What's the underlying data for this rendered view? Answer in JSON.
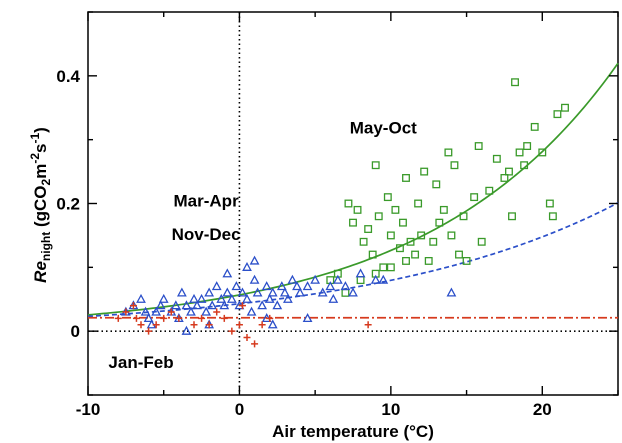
{
  "chart_data": {
    "type": "scatter",
    "xlabel": "Air temperature (°C)",
    "ylabel": {
      "main": "Re",
      "sub1": "night",
      "rest1": " (gCO",
      "sub2": "2",
      "rest2": "m",
      "sup1": "-2",
      "rest3": "s",
      "sup2": "-1",
      "rest4": ")"
    },
    "xlim": [
      -10,
      25
    ],
    "ylim": [
      -0.1,
      0.5
    ],
    "xticks": [
      -10,
      0,
      10,
      20
    ],
    "yticks": [
      0,
      0.2,
      0.4
    ],
    "xtick_labels": [
      "-10",
      "0",
      "10",
      "20"
    ],
    "ytick_labels": [
      "0",
      "0.2",
      "0.4"
    ],
    "annotations": [
      {
        "text": "May-Oct",
        "x": 9.5,
        "y": 0.31
      },
      {
        "text": "Mar-Apr",
        "x": -2.2,
        "y": 0.195
      },
      {
        "text": "Nov-Dec",
        "x": -2.2,
        "y": 0.143
      },
      {
        "text": "Jan-Feb",
        "x": -6.5,
        "y": -0.058
      }
    ],
    "series": [
      {
        "marker": "square",
        "color": "#3a9a2a",
        "points": [
          [
            7.2,
            0.2
          ],
          [
            7.5,
            0.17
          ],
          [
            7.8,
            0.19
          ],
          [
            8.2,
            0.14
          ],
          [
            8.5,
            0.16
          ],
          [
            8.8,
            0.12
          ],
          [
            9.0,
            0.26
          ],
          [
            9.2,
            0.18
          ],
          [
            9.5,
            0.1
          ],
          [
            9.8,
            0.21
          ],
          [
            10.0,
            0.15
          ],
          [
            10.3,
            0.19
          ],
          [
            10.6,
            0.13
          ],
          [
            10.8,
            0.17
          ],
          [
            11.0,
            0.24
          ],
          [
            11.3,
            0.14
          ],
          [
            11.6,
            0.12
          ],
          [
            11.8,
            0.2
          ],
          [
            12.0,
            0.15
          ],
          [
            12.2,
            0.25
          ],
          [
            12.5,
            0.11
          ],
          [
            12.8,
            0.14
          ],
          [
            13.0,
            0.23
          ],
          [
            13.2,
            0.17
          ],
          [
            13.5,
            0.19
          ],
          [
            13.8,
            0.28
          ],
          [
            14.0,
            0.15
          ],
          [
            14.2,
            0.26
          ],
          [
            14.5,
            0.12
          ],
          [
            14.8,
            0.18
          ],
          [
            15.0,
            0.11
          ],
          [
            15.5,
            0.21
          ],
          [
            15.8,
            0.29
          ],
          [
            16.0,
            0.14
          ],
          [
            16.5,
            0.22
          ],
          [
            17.0,
            0.27
          ],
          [
            17.5,
            0.24
          ],
          [
            17.8,
            0.25
          ],
          [
            18.0,
            0.18
          ],
          [
            18.2,
            0.39
          ],
          [
            18.5,
            0.28
          ],
          [
            18.8,
            0.26
          ],
          [
            19.0,
            0.29
          ],
          [
            19.5,
            0.32
          ],
          [
            20.0,
            0.28
          ],
          [
            20.5,
            0.2
          ],
          [
            20.7,
            0.18
          ],
          [
            21.0,
            0.34
          ],
          [
            21.5,
            0.35
          ],
          [
            6.0,
            0.08
          ],
          [
            6.5,
            0.09
          ],
          [
            7.0,
            0.06
          ],
          [
            8.0,
            0.08
          ],
          [
            9.0,
            0.09
          ],
          [
            10.0,
            0.1
          ],
          [
            11.0,
            0.11
          ]
        ]
      },
      {
        "marker": "triangle",
        "color": "#2b4fc9",
        "points": [
          [
            -7.5,
            0.03
          ],
          [
            -7.0,
            0.04
          ],
          [
            -6.5,
            0.05
          ],
          [
            -6.2,
            0.03
          ],
          [
            -6.0,
            0.02
          ],
          [
            -5.8,
            0.01
          ],
          [
            -5.5,
            0.03
          ],
          [
            -5.2,
            0.04
          ],
          [
            -5.0,
            0.05
          ],
          [
            -4.5,
            0.03
          ],
          [
            -4.2,
            0.04
          ],
          [
            -4.0,
            0.02
          ],
          [
            -3.8,
            0.06
          ],
          [
            -3.5,
            0.04
          ],
          [
            -3.2,
            0.03
          ],
          [
            -3.0,
            0.05
          ],
          [
            -2.8,
            0.04
          ],
          [
            -2.5,
            0.05
          ],
          [
            -2.2,
            0.03
          ],
          [
            -2.0,
            0.06
          ],
          [
            -1.8,
            0.04
          ],
          [
            -1.5,
            0.07
          ],
          [
            -1.2,
            0.05
          ],
          [
            -1.0,
            0.04
          ],
          [
            -0.8,
            0.06
          ],
          [
            -0.5,
            0.05
          ],
          [
            -0.2,
            0.07
          ],
          [
            0.0,
            0.04
          ],
          [
            0.2,
            0.06
          ],
          [
            0.5,
            0.05
          ],
          [
            0.8,
            0.03
          ],
          [
            1.0,
            0.08
          ],
          [
            1.2,
            0.06
          ],
          [
            1.5,
            0.04
          ],
          [
            1.8,
            0.07
          ],
          [
            2.0,
            0.05
          ],
          [
            2.2,
            0.06
          ],
          [
            2.5,
            0.04
          ],
          [
            2.8,
            0.07
          ],
          [
            3.0,
            0.06
          ],
          [
            3.2,
            0.05
          ],
          [
            3.5,
            0.08
          ],
          [
            3.8,
            0.07
          ],
          [
            4.0,
            0.06
          ],
          [
            4.5,
            0.07
          ],
          [
            5.0,
            0.08
          ],
          [
            5.5,
            0.06
          ],
          [
            6.0,
            0.07
          ],
          [
            6.5,
            0.08
          ],
          [
            7.0,
            0.07
          ],
          [
            7.5,
            0.06
          ],
          [
            8.0,
            0.09
          ],
          [
            9.0,
            0.08
          ],
          [
            9.5,
            0.08
          ],
          [
            14.0,
            0.06
          ],
          [
            -3.5,
            0.0
          ],
          [
            -2.0,
            0.01
          ],
          [
            1.8,
            0.02
          ],
          [
            2.2,
            0.01
          ],
          [
            4.5,
            0.02
          ],
          [
            1.0,
            0.11
          ],
          [
            0.5,
            0.1
          ],
          [
            -0.8,
            0.09
          ],
          [
            6.2,
            0.05
          ]
        ]
      },
      {
        "marker": "plus",
        "color": "#d63a1e",
        "points": [
          [
            -8.0,
            0.02
          ],
          [
            -7.5,
            0.03
          ],
          [
            -7.0,
            0.04
          ],
          [
            -6.8,
            0.02
          ],
          [
            -6.5,
            0.01
          ],
          [
            -6.0,
            0.0
          ],
          [
            -5.5,
            0.01
          ],
          [
            -5.0,
            0.02
          ],
          [
            -4.5,
            0.03
          ],
          [
            -4.0,
            0.02
          ],
          [
            -3.0,
            0.01
          ],
          [
            -2.5,
            0.02
          ],
          [
            -2.0,
            0.01
          ],
          [
            -1.0,
            0.02
          ],
          [
            -0.5,
            0.0
          ],
          [
            0.0,
            0.01
          ],
          [
            0.5,
            -0.01
          ],
          [
            1.0,
            -0.02
          ],
          [
            1.5,
            0.01
          ],
          [
            2.0,
            0.02
          ],
          [
            -1.5,
            0.03
          ],
          [
            8.5,
            0.01
          ],
          [
            0.2,
            0.04
          ]
        ]
      }
    ],
    "curves": [
      {
        "style": "solid",
        "color": "#3a9a2a",
        "a": 0.0568,
        "b": 0.08
      },
      {
        "style": "dashed",
        "color": "#2b4fc9",
        "a": 0.043,
        "b": 0.0617
      },
      {
        "style": "dashdot",
        "color": "#d63a1e",
        "constant": 0.021
      }
    ],
    "reference_lines": [
      {
        "axis": "x",
        "value": 0,
        "style": "dotted"
      },
      {
        "axis": "y",
        "value": 0,
        "style": "dotted"
      }
    ]
  }
}
